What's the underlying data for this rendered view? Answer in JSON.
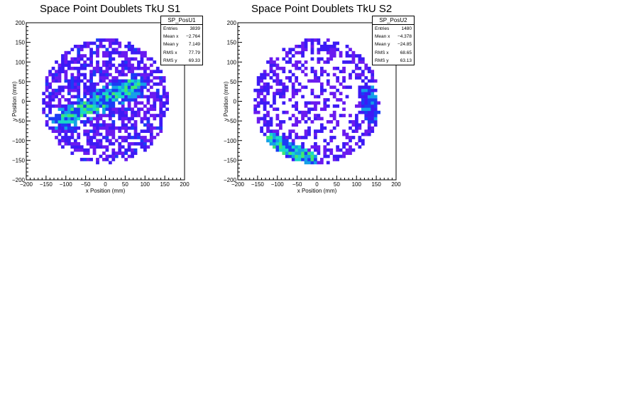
{
  "chart_data": [
    {
      "type": "heatmap",
      "title": "Space Point Doublets TkU S1",
      "xlabel": "x Position (mm)",
      "ylabel": "y Position (mm)",
      "xlim": [
        -200,
        200
      ],
      "ylim": [
        -200,
        200
      ],
      "x_ticks": [
        "−200",
        "−150",
        "−100",
        "−50",
        "0",
        "50",
        "100",
        "150",
        "200"
      ],
      "y_ticks": [
        "−200",
        "−150",
        "−100",
        "−50",
        "0",
        "50",
        "100",
        "150",
        "200"
      ],
      "stats": {
        "name": "SP_PosU1",
        "rows": [
          {
            "label": "Entries",
            "value": "3839"
          },
          {
            "label": "Mean x",
            "value": "−2.764"
          },
          {
            "label": "Mean y",
            "value": "7.149"
          },
          {
            "label": "RMS x",
            "value": "77.79"
          },
          {
            "label": "RMS y",
            "value": "69.33"
          }
        ]
      },
      "distribution": "disc of radius ~160 mm with a dense diagonal band from (-100,-40) to (70,40)",
      "colors": [
        "#6a1af0",
        "#3d1af5",
        "#1a3cf5",
        "#14a0e8",
        "#18d8c8",
        "#40e870",
        "#9ef01a"
      ]
    },
    {
      "type": "heatmap",
      "title": "Space Point Doublets TkU S2",
      "xlabel": "x Position (mm)",
      "ylabel": "y Position (mm)",
      "xlim": [
        -200,
        200
      ],
      "ylim": [
        -200,
        200
      ],
      "x_ticks": [
        "−200",
        "−150",
        "−100",
        "−50",
        "0",
        "50",
        "100",
        "150",
        "200"
      ],
      "y_ticks": [
        "−200",
        "−150",
        "−100",
        "−50",
        "0",
        "50",
        "100",
        "150",
        "200"
      ],
      "stats": {
        "name": "SP_PosU2",
        "rows": [
          {
            "label": "Entries",
            "value": "1480"
          },
          {
            "label": "Mean x",
            "value": "−4.378"
          },
          {
            "label": "Mean y",
            "value": "−24.85"
          },
          {
            "label": "RMS x",
            "value": "68.65"
          },
          {
            "label": "RMS y",
            "value": "63.13"
          }
        ]
      },
      "distribution": "sparse disc of radius ~160 mm, dense arc at lower-left (-100..0, -150..-100) and right edge (100..160, -50..20)",
      "colors": [
        "#6a1af0",
        "#3d1af5",
        "#1a3cf5",
        "#14a0e8",
        "#18d8c8",
        "#40e870",
        "#9ef01a"
      ]
    }
  ]
}
